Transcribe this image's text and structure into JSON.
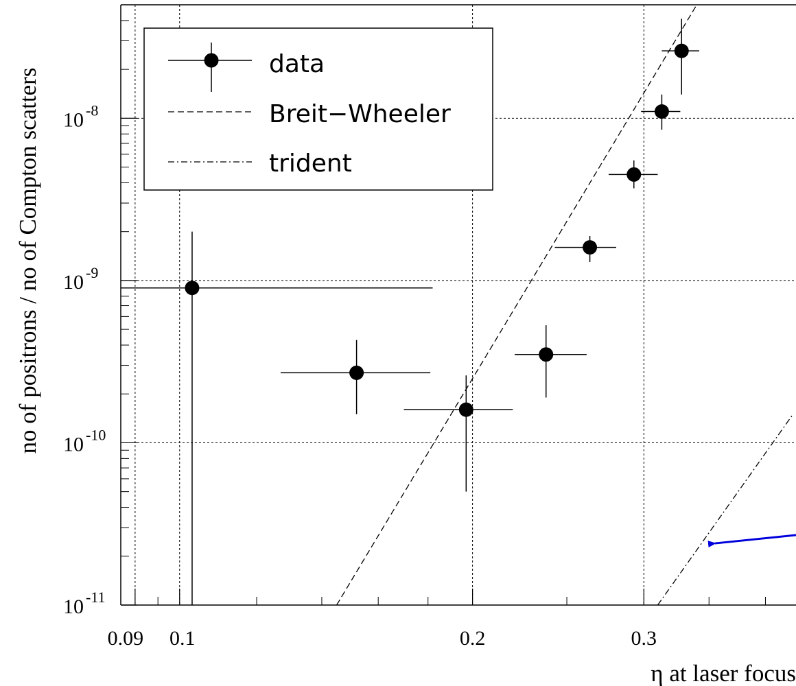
{
  "chart_data": {
    "type": "scatter",
    "xlabel": "η at laser focus",
    "ylabel": "no of positrons / no of Compton scatters",
    "x_scale": "log",
    "y_scale": "log",
    "xlim": [
      0.087,
      0.43
    ],
    "ylim": [
      1e-11,
      5e-08
    ],
    "x_ticks": [
      {
        "value": 0.09,
        "label": "0.09"
      },
      {
        "value": 0.1,
        "label": "0.1"
      },
      {
        "value": 0.2,
        "label": "0.2"
      },
      {
        "value": 0.3,
        "label": "0.3"
      }
    ],
    "y_ticks": [
      {
        "value": 1e-11,
        "base": "10",
        "exp": "-11"
      },
      {
        "value": 1e-10,
        "base": "10",
        "exp": "-10"
      },
      {
        "value": 1e-09,
        "base": "10",
        "exp": "-9"
      },
      {
        "value": 1e-08,
        "base": "10",
        "exp": "-8"
      }
    ],
    "grid": true,
    "legend_position": "top-left",
    "series": [
      {
        "name": "data",
        "style": "points-with-errors",
        "points": [
          {
            "x": 0.103,
            "y": 9e-10,
            "xerr": [
              0.016,
              0.079
            ],
            "yerr": [
              9e-10,
              1.1e-09
            ]
          },
          {
            "x": 0.152,
            "y": 2.7e-10,
            "xerr": [
              0.025,
              0.029
            ],
            "yerr": [
              1.2e-10,
              1.6e-10
            ]
          },
          {
            "x": 0.197,
            "y": 1.6e-10,
            "xerr": [
              0.027,
              0.023
            ],
            "yerr": [
              1.1e-10,
              1e-10
            ]
          },
          {
            "x": 0.238,
            "y": 3.5e-10,
            "xerr": [
              0.017,
              0.024
            ],
            "yerr": [
              1.6e-10,
              1.8e-10
            ]
          },
          {
            "x": 0.264,
            "y": 1.6e-09,
            "xerr": [
              0.021,
              0.017
            ],
            "yerr": [
              3e-10,
              2.8e-10
            ]
          },
          {
            "x": 0.293,
            "y": 4.5e-09,
            "xerr": [
              0.017,
              0.017
            ],
            "yerr": [
              8e-10,
              1e-09
            ]
          },
          {
            "x": 0.313,
            "y": 1.1e-08,
            "xerr": [
              0.015,
              0.014
            ],
            "yerr": [
              2.5e-09,
              3e-09
            ]
          },
          {
            "x": 0.328,
            "y": 2.6e-08,
            "xerr": [
              0.015,
              0.014
            ],
            "yerr": [
              1.2e-08,
              1.5e-08
            ]
          }
        ]
      },
      {
        "name": "Breit−Wheeler",
        "style": "dashed-line",
        "points": [
          {
            "x": 0.145,
            "y": 1e-11
          },
          {
            "x": 0.34,
            "y": 5e-08
          }
        ]
      },
      {
        "name": "trident",
        "style": "dash-dot-line",
        "points": [
          {
            "x": 0.31,
            "y": 1e-11
          },
          {
            "x": 0.427,
            "y": 1.5e-10
          }
        ]
      }
    ],
    "annotation": {
      "type": "arrow",
      "color": "#0000dd",
      "from": {
        "x": 0.43,
        "y": 2.7e-11
      },
      "to": {
        "x": 0.355,
        "y": 2.4e-11
      }
    }
  }
}
